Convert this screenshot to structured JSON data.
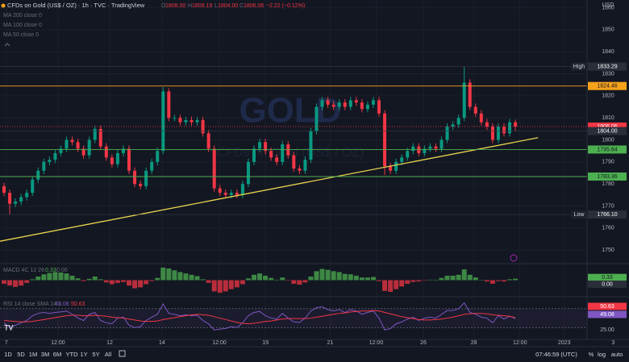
{
  "chart_data": [
    {
      "type": "candlestick",
      "title": "CFDs on Gold (US$ / OZ) · 1h · TVC · TradingView",
      "watermark": "GOLD",
      "watermark_sub": "CFDs on Gold (US$ / OZ)",
      "ohlc_keys": [
        "O",
        "H",
        "L",
        "C"
      ],
      "open_label": "1808.00",
      "low_label": "1804.00",
      "change_label": "−2.22 (−0.12%)",
      "indicators": [
        "MA 200 close 0",
        "MA 100 close 0",
        "MA 50 close 0"
      ],
      "currency": "USD",
      "up_color": "#089981",
      "down_color": "#f23645",
      "xlim": [
        -0.71,
        110
      ],
      "xticks": [
        {
          "value": 0.4,
          "label": "7"
        },
        {
          "value": 9.5,
          "label": "12:00"
        },
        {
          "value": 18.6,
          "label": "12"
        },
        {
          "value": 27.8,
          "label": "14"
        },
        {
          "value": 37.9,
          "label": "12:00"
        },
        {
          "value": 46,
          "label": "19"
        },
        {
          "value": 57.4,
          "label": "21"
        },
        {
          "value": 65.5,
          "label": "12:00"
        },
        {
          "value": 73.8,
          "label": "26"
        },
        {
          "value": 82.7,
          "label": "28"
        },
        {
          "value": 90.8,
          "label": "12:00"
        },
        {
          "value": 98.6,
          "label": "2023"
        },
        {
          "value": 107.2,
          "label": "3"
        }
      ],
      "ylim": [
        1744.2,
        1863.5
      ],
      "yticks": [
        1750,
        1760,
        1770,
        1780,
        1790,
        1800,
        1810,
        1820,
        1830,
        1840,
        1850,
        1860
      ],
      "grid": true,
      "opens": [
        1779,
        1776,
        1771,
        1772,
        1774,
        1776,
        1782,
        1786,
        1790,
        1791,
        1794,
        1796,
        1800,
        1799,
        1796,
        1793,
        1800,
        1805,
        1797,
        1792,
        1789,
        1794,
        1796,
        1786,
        1780,
        1779,
        1786,
        1790,
        1795,
        1822,
        1810,
        1810,
        1808,
        1809,
        1808,
        1809,
        1803,
        1796,
        1778,
        1776,
        1775,
        1776,
        1775,
        1780,
        1790,
        1796,
        1799,
        1795,
        1792,
        1790,
        1798,
        1793,
        1787,
        1786,
        1791,
        1804,
        1815,
        1818,
        1816,
        1815,
        1817,
        1815,
        1818,
        1817,
        1814,
        1816,
        1818,
        1812,
        1788,
        1786,
        1790,
        1792,
        1795,
        1797,
        1794,
        1796,
        1797,
        1796,
        1800,
        1806,
        1807,
        1810,
        1826,
        1815,
        1812,
        1808,
        1806,
        1800,
        1806,
        1803,
        1808
      ],
      "highs": [
        1780.5,
        1777.5,
        1773.5,
        1775.5,
        1777.5,
        1783.5,
        1787.5,
        1791.5,
        1792.5,
        1795.5,
        1797.5,
        1801.5,
        1801.5,
        1800.5,
        1797.5,
        1801.5,
        1806.5,
        1806.5,
        1798.5,
        1793.5,
        1795.5,
        1797.5,
        1797.5,
        1787.5,
        1781.5,
        1787.5,
        1791.5,
        1796.5,
        1824,
        1823.5,
        1811.5,
        1811.5,
        1810.5,
        1810.5,
        1810.5,
        1810.5,
        1804.5,
        1797.5,
        1779.5,
        1777.5,
        1777.5,
        1777.5,
        1781.5,
        1791.5,
        1797.5,
        1800.5,
        1800.5,
        1796.5,
        1793.5,
        1799.5,
        1799.5,
        1794.5,
        1788.5,
        1792.5,
        1805.5,
        1816.5,
        1819.5,
        1819.5,
        1817.5,
        1818.5,
        1818.5,
        1819.5,
        1819.5,
        1818.5,
        1817.5,
        1819.5,
        1819.5,
        1813.5,
        1789.5,
        1791.5,
        1793.5,
        1796.5,
        1798.5,
        1798.5,
        1797.5,
        1798.5,
        1798.5,
        1801.5,
        1807.5,
        1808.5,
        1811.5,
        1833.29,
        1827.5,
        1816.5,
        1813.5,
        1809.5,
        1807.5,
        1807.5,
        1807.5,
        1809.5,
        1809.19
      ],
      "lows": [
        1774.5,
        1766.1,
        1769.5,
        1770.5,
        1772.5,
        1774.5,
        1780.5,
        1784.5,
        1788.5,
        1789.5,
        1792.5,
        1794.5,
        1797.5,
        1794.5,
        1791.5,
        1791.5,
        1798.5,
        1795.5,
        1790.5,
        1787.5,
        1787.5,
        1792.5,
        1784.5,
        1778.5,
        1777.5,
        1777.5,
        1784.5,
        1788.5,
        1793.5,
        1808.5,
        1808.5,
        1806.5,
        1806.5,
        1806.5,
        1806.5,
        1801.5,
        1794.5,
        1776.5,
        1774.5,
        1773.5,
        1773.5,
        1773.5,
        1773.5,
        1778.5,
        1788.5,
        1794.5,
        1793.5,
        1790.5,
        1788.5,
        1788.5,
        1791.5,
        1785.5,
        1784.5,
        1784.5,
        1789.5,
        1802.5,
        1813.5,
        1814.5,
        1813.5,
        1813.5,
        1813.5,
        1813.5,
        1815.5,
        1812.5,
        1812.5,
        1814.5,
        1810.5,
        1784,
        1784.5,
        1784.5,
        1788.5,
        1790.5,
        1793.5,
        1792.5,
        1792.5,
        1794.5,
        1794.5,
        1794.5,
        1798.5,
        1804.5,
        1805.5,
        1808.5,
        1813.5,
        1810.5,
        1806.5,
        1804.5,
        1798.5,
        1798.5,
        1801.5,
        1801.5,
        1804
      ],
      "closes": [
        1776,
        1771,
        1772,
        1774,
        1776,
        1782,
        1786,
        1790,
        1791,
        1794,
        1796,
        1800,
        1799,
        1796,
        1793,
        1800,
        1805,
        1797,
        1792,
        1789,
        1794,
        1796,
        1786,
        1780,
        1779,
        1786,
        1790,
        1795,
        1822,
        1810,
        1810,
        1808,
        1809,
        1808,
        1809,
        1803,
        1796,
        1778,
        1776,
        1775,
        1776,
        1775,
        1780,
        1790,
        1796,
        1799,
        1795,
        1792,
        1790,
        1798,
        1793,
        1787,
        1786,
        1791,
        1804,
        1815,
        1818,
        1816,
        1815,
        1817,
        1815,
        1818,
        1817,
        1814,
        1816,
        1818,
        1812,
        1788,
        1786,
        1790,
        1792,
        1795,
        1797,
        1794,
        1796,
        1797,
        1796,
        1800,
        1806,
        1807,
        1810,
        1826,
        1815,
        1812,
        1808,
        1806,
        1800,
        1806,
        1803,
        1808,
        1806.06
      ],
      "trendline": {
        "color": "#e8d44d",
        "x": [
          -0.71,
          94
        ],
        "y": [
          1754,
          1801
        ]
      },
      "levels": [
        {
          "name": "High",
          "value": 1833.29,
          "label": "1833.29",
          "color": "#2a2e39"
        },
        {
          "value": 1824.46,
          "label": "1824.46",
          "color": "#f7a21b"
        },
        {
          "value": 1806.06,
          "label": "1806.06",
          "color": "#f23645"
        },
        {
          "value": 1804,
          "label": "1804.00",
          "color": "#2a2e39"
        },
        {
          "value": 1795.64,
          "label": "1795.64",
          "color": "#4caf50"
        },
        {
          "value": 1783.36,
          "label": "1783.36",
          "color": "#4caf50"
        },
        {
          "name": "Low",
          "value": 1766.1,
          "label": "1766.10",
          "color": "#2a2e39"
        }
      ]
    },
    {
      "type": "histogram",
      "title": "MACD 4C 12 26",
      "up_color": "#4caf50",
      "down_color": "#f23645",
      "ylim": [
        -3.5,
        3.5
      ],
      "values": [
        -0.8,
        -1.2,
        -1.5,
        -1.2,
        -0.6,
        0.2,
        0.8,
        1.3,
        1.6,
        1.8,
        1.7,
        1.5,
        1.0,
        0.4,
        -0.2,
        0.3,
        0.8,
        0.2,
        -0.5,
        -0.9,
        -0.6,
        -0.4,
        -1.2,
        -1.8,
        -1.6,
        -0.9,
        -0.2,
        0.5,
        2.8,
        2.6,
        2.2,
        1.8,
        1.5,
        1.2,
        0.9,
        0.2,
        -0.6,
        -2.5,
        -2.8,
        -2.5,
        -2.0,
        -1.6,
        -0.9,
        0.4,
        1.2,
        1.5,
        1.0,
        0.5,
        0.1,
        0.6,
        -0.1,
        -0.8,
        -1.0,
        -0.5,
        0.8,
        2.0,
        2.5,
        2.3,
        2.0,
        1.8,
        1.4,
        1.3,
        1.0,
        0.6,
        0.6,
        0.7,
        -0.2,
        -2.4,
        -2.6,
        -2.0,
        -1.4,
        -0.8,
        -0.4,
        -0.3,
        -0.1,
        0.1,
        0.1,
        0.5,
        1.0,
        1.0,
        1.2,
        2.4,
        1.2,
        0.6,
        0.0,
        -0.3,
        -0.8,
        -0.2,
        -0.3,
        0.2,
        0.33
      ],
      "readouts": [
        {
          "value": 0,
          "label": "0.00"
        }
      ]
    },
    {
      "type": "line",
      "title": "RSI 14 close SMA 14 2",
      "ylim": [
        5,
        85
      ],
      "yticks": [
        {
          "value": 25,
          "label": "25.00"
        }
      ],
      "bands": [
        30,
        70
      ],
      "series": [
        {
          "color": "#7e57c2",
          "values": [
            40,
            30,
            35,
            40,
            45,
            55,
            60,
            62,
            60,
            62,
            63,
            65,
            58,
            50,
            45,
            58,
            62,
            45,
            40,
            38,
            50,
            52,
            35,
            30,
            32,
            45,
            52,
            58,
            80,
            60,
            58,
            55,
            57,
            55,
            56,
            45,
            38,
            25,
            27,
            28,
            32,
            30,
            40,
            55,
            62,
            64,
            55,
            50,
            48,
            60,
            50,
            42,
            41,
            50,
            65,
            72,
            74,
            68,
            65,
            68,
            62,
            68,
            65,
            58,
            62,
            65,
            50,
            25,
            28,
            38,
            42,
            48,
            52,
            45,
            50,
            52,
            50,
            58,
            66,
            66,
            70,
            82,
            62,
            58,
            52,
            50,
            40,
            55,
            48,
            54,
            49.08
          ]
        },
        {
          "color": "#f23645",
          "values": [
            45,
            44,
            43,
            42,
            42,
            43,
            45,
            47,
            49,
            51,
            53,
            55,
            56,
            56,
            55,
            55,
            56,
            55,
            54,
            52,
            51,
            50,
            48,
            46,
            44,
            43,
            43,
            44,
            47,
            49,
            51,
            53,
            55,
            57,
            58,
            57,
            56,
            53,
            50,
            47,
            44,
            41,
            39,
            38,
            39,
            41,
            43,
            44,
            46,
            48,
            49,
            49,
            49,
            49,
            50,
            52,
            54,
            56,
            58,
            60,
            61,
            63,
            64,
            65,
            65,
            66,
            65,
            62,
            59,
            56,
            53,
            51,
            49,
            47,
            46,
            46,
            47,
            48,
            50,
            52,
            55,
            58,
            59,
            60,
            60,
            59,
            57,
            56,
            55,
            54,
            50.63
          ]
        }
      ]
    }
  ],
  "toolbar": {
    "ranges": [
      "1D",
      "5D",
      "1M",
      "3M",
      "6M",
      "YTD",
      "1Y",
      "5Y",
      "All"
    ],
    "clock": "07:46:59 (UTC)",
    "options": [
      "%",
      "log",
      "auto"
    ]
  }
}
